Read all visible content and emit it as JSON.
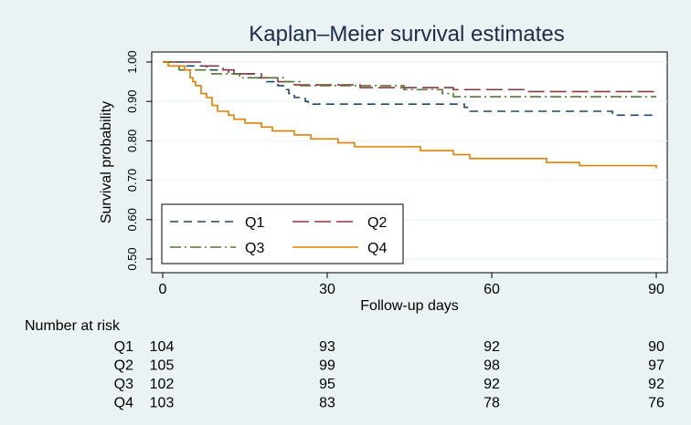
{
  "chart_data": {
    "type": "line",
    "title": "Kaplan–Meier survival estimates",
    "xlabel": "Follow-up days",
    "ylabel": "Survival probability",
    "xlim": [
      0,
      90
    ],
    "ylim": [
      0.5,
      1.0
    ],
    "x_ticks": [
      0,
      30,
      60,
      90
    ],
    "x_tick_labels": [
      "0",
      "30",
      "60",
      "90"
    ],
    "y_ticks": [
      0.5,
      0.6,
      0.7,
      0.8,
      0.9,
      1.0
    ],
    "y_tick_labels": [
      "0.50",
      "0.60",
      "0.70",
      "0.80",
      "0.90",
      "1.00"
    ],
    "grid": true,
    "legend_position": "bottom-left",
    "series": [
      {
        "name": "Q1",
        "color": "#1a476f",
        "dash": "dashed",
        "steps": [
          [
            0,
            1.0
          ],
          [
            4,
            0.99
          ],
          [
            8,
            0.98
          ],
          [
            12,
            0.97
          ],
          [
            17,
            0.96
          ],
          [
            19,
            0.95
          ],
          [
            21,
            0.94
          ],
          [
            22,
            0.93
          ],
          [
            23,
            0.92
          ],
          [
            24,
            0.91
          ],
          [
            26,
            0.9
          ],
          [
            26.5,
            0.893
          ],
          [
            55,
            0.885
          ],
          [
            56,
            0.875
          ],
          [
            82,
            0.865
          ],
          [
            90,
            0.865
          ]
        ]
      },
      {
        "name": "Q2",
        "color": "#90353b",
        "dash": "longdash",
        "steps": [
          [
            0,
            1.0
          ],
          [
            7,
            0.99
          ],
          [
            11,
            0.98
          ],
          [
            13,
            0.97
          ],
          [
            18,
            0.96
          ],
          [
            21,
            0.95
          ],
          [
            24,
            0.942
          ],
          [
            36,
            0.935
          ],
          [
            53,
            0.93
          ],
          [
            66,
            0.925
          ],
          [
            90,
            0.925
          ]
        ]
      },
      {
        "name": "Q3",
        "color": "#55752f",
        "dash": "dashdot",
        "steps": [
          [
            0,
            1.0
          ],
          [
            3,
            0.98
          ],
          [
            9,
            0.97
          ],
          [
            14,
            0.96
          ],
          [
            22,
            0.95
          ],
          [
            25,
            0.94
          ],
          [
            44,
            0.93
          ],
          [
            51,
            0.92
          ],
          [
            53,
            0.912
          ],
          [
            90,
            0.912
          ]
        ]
      },
      {
        "name": "Q4",
        "color": "#e37e00",
        "dash": "solid",
        "steps": [
          [
            0,
            1.0
          ],
          [
            1,
            0.99
          ],
          [
            4,
            0.98
          ],
          [
            5,
            0.96
          ],
          [
            5.5,
            0.95
          ],
          [
            6,
            0.94
          ],
          [
            7,
            0.92
          ],
          [
            8,
            0.91
          ],
          [
            9,
            0.89
          ],
          [
            10,
            0.875
          ],
          [
            12,
            0.865
          ],
          [
            13,
            0.855
          ],
          [
            15,
            0.845
          ],
          [
            18,
            0.835
          ],
          [
            20,
            0.825
          ],
          [
            24,
            0.815
          ],
          [
            27,
            0.805
          ],
          [
            32,
            0.795
          ],
          [
            35,
            0.785
          ],
          [
            47,
            0.775
          ],
          [
            53,
            0.765
          ],
          [
            56,
            0.755
          ],
          [
            70,
            0.745
          ],
          [
            76,
            0.737
          ],
          [
            90,
            0.737
          ],
          [
            90,
            0.73
          ]
        ]
      }
    ],
    "risk_table": {
      "title": "Number at risk",
      "times": [
        0,
        30,
        60,
        90
      ],
      "rows": [
        {
          "label": "Q1",
          "values": [
            "104",
            "93",
            "92",
            "90"
          ]
        },
        {
          "label": "Q2",
          "values": [
            "105",
            "99",
            "98",
            "97"
          ]
        },
        {
          "label": "Q3",
          "values": [
            "102",
            "95",
            "92",
            "92"
          ]
        },
        {
          "label": "Q4",
          "values": [
            "103",
            "83",
            "78",
            "76"
          ]
        }
      ]
    }
  }
}
